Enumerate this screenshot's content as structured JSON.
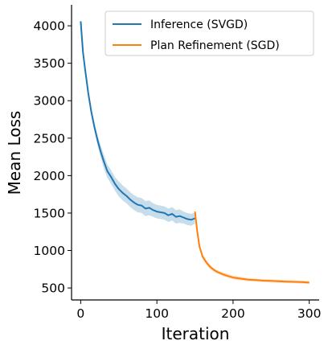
{
  "chart_data": {
    "type": "line",
    "title": "",
    "xlabel": "Iteration",
    "ylabel": "Mean Loss",
    "xlim": [
      -12,
      313
    ],
    "ylim": [
      340,
      4280
    ],
    "xticks": [
      0,
      100,
      200,
      300
    ],
    "yticks": [
      500,
      1000,
      1500,
      2000,
      2500,
      3000,
      3500,
      4000
    ],
    "grid": false,
    "legend_position": "top-right",
    "series": [
      {
        "name": "Inference (SVGD)",
        "color": "#1f77b4",
        "x": [
          0,
          3,
          6,
          10,
          14,
          18,
          22,
          26,
          30,
          35,
          40,
          45,
          50,
          55,
          60,
          65,
          70,
          75,
          80,
          85,
          90,
          95,
          100,
          105,
          110,
          115,
          120,
          125,
          130,
          135,
          140,
          145,
          150
        ],
        "y": [
          4060,
          3650,
          3400,
          3100,
          2850,
          2650,
          2480,
          2330,
          2200,
          2060,
          1980,
          1890,
          1820,
          1770,
          1730,
          1680,
          1640,
          1610,
          1600,
          1560,
          1570,
          1540,
          1520,
          1510,
          1500,
          1470,
          1490,
          1450,
          1460,
          1440,
          1420,
          1410,
          1430
        ],
        "band_width": [
          10,
          20,
          30,
          40,
          50,
          60,
          70,
          80,
          90,
          90,
          90,
          90,
          100,
          100,
          100,
          100,
          100,
          100,
          100,
          100,
          100,
          90,
          90,
          90,
          90,
          90,
          90,
          90,
          90,
          80,
          80,
          80,
          70
        ]
      },
      {
        "name": "Plan Refinement (SGD)",
        "color": "#ff7f0e",
        "x": [
          150,
          153,
          156,
          160,
          165,
          170,
          175,
          180,
          185,
          190,
          195,
          200,
          210,
          220,
          230,
          240,
          250,
          260,
          270,
          280,
          290,
          300
        ],
        "y": [
          1520,
          1250,
          1050,
          920,
          840,
          780,
          740,
          710,
          690,
          670,
          655,
          640,
          625,
          612,
          605,
          598,
          594,
          590,
          585,
          582,
          578,
          572
        ],
        "band_width": [
          40,
          40,
          40,
          35,
          30,
          30,
          25,
          25,
          25,
          25,
          25,
          25,
          25,
          20,
          20,
          20,
          20,
          20,
          20,
          20,
          20,
          20
        ]
      }
    ]
  }
}
